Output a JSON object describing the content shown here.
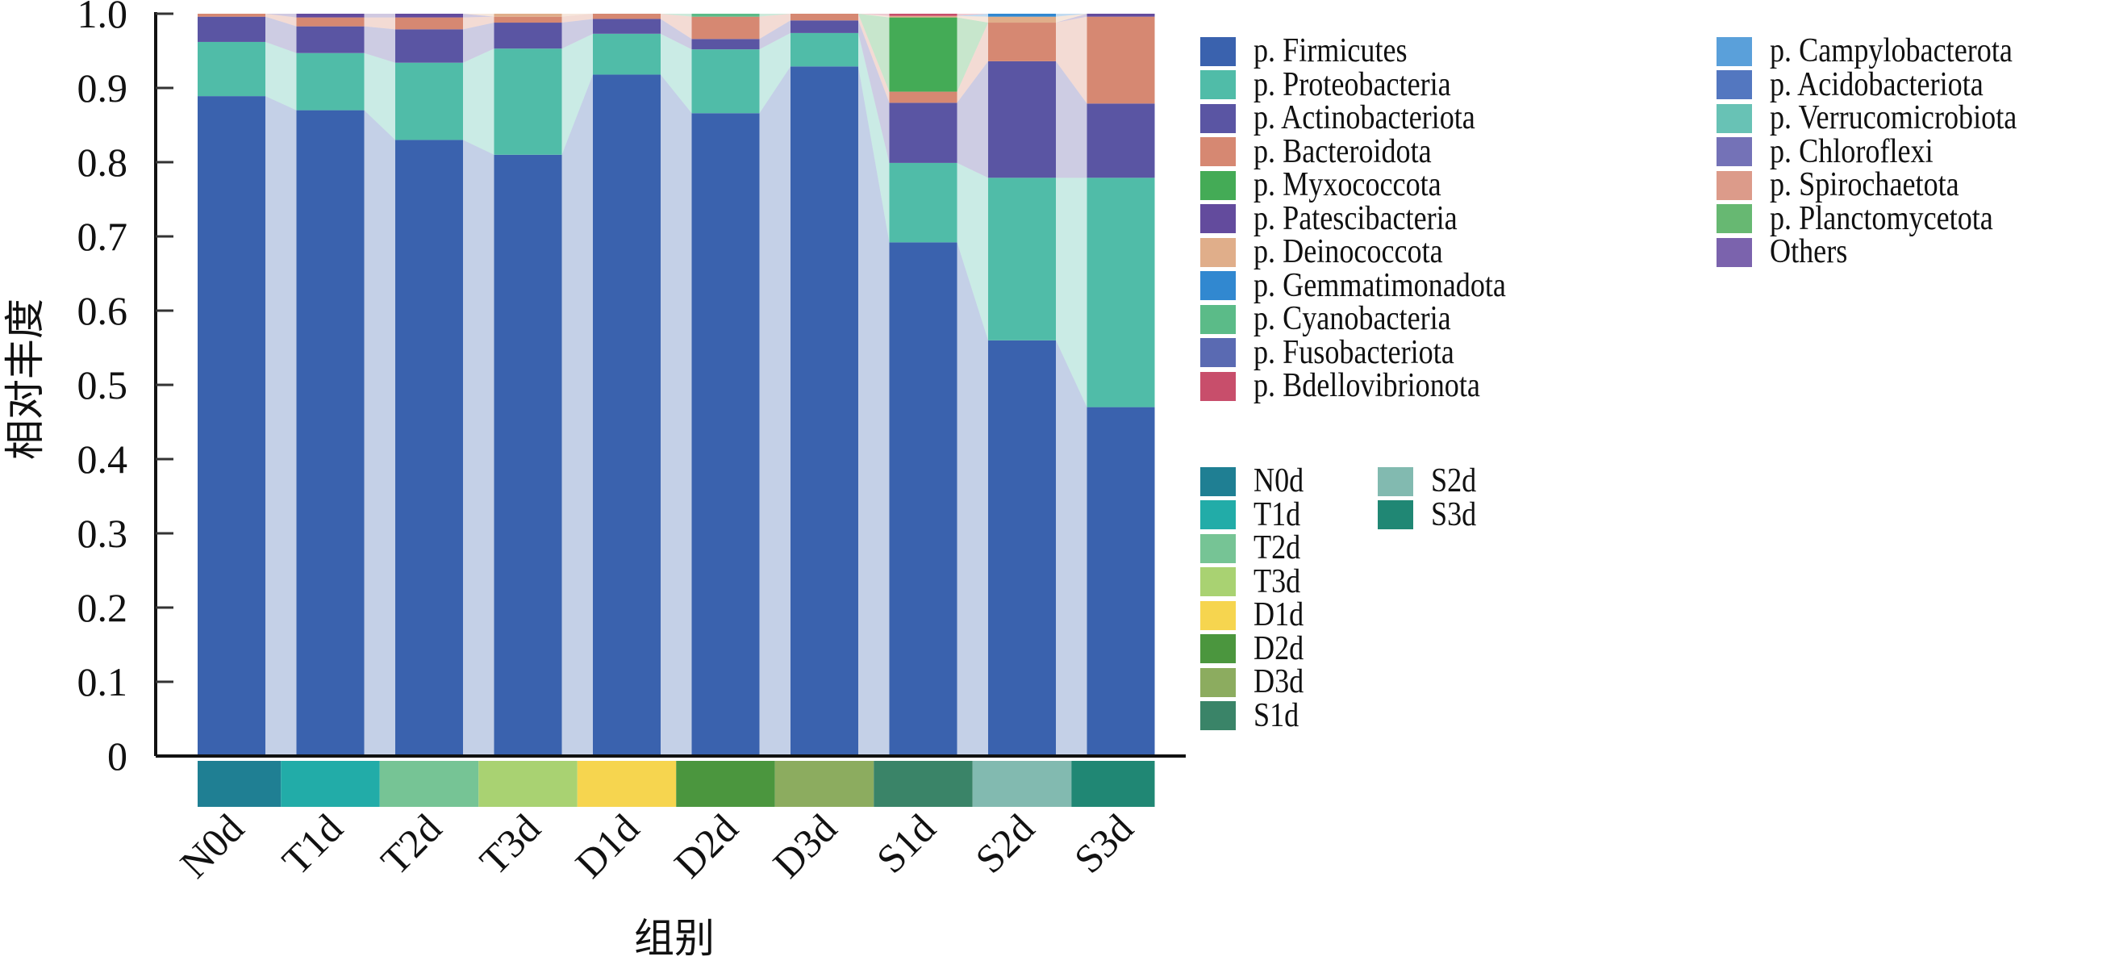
{
  "chart_data": {
    "type": "bar",
    "stacked": true,
    "normalized": true,
    "title": "",
    "xlabel": "组别",
    "ylabel": "相对丰度",
    "ylim": [
      0,
      1.0
    ],
    "yticks": [
      "0",
      "0.1",
      "0.2",
      "0.3",
      "0.4",
      "0.5",
      "0.6",
      "0.7",
      "0.8",
      "0.9",
      "1.0"
    ],
    "ytick_values": [
      0,
      0.1,
      0.2,
      0.3,
      0.4,
      0.5,
      0.6,
      0.7,
      0.8,
      0.9,
      1.0
    ],
    "grid": false,
    "legend_position": "right",
    "categories": [
      "N0d",
      "T1d",
      "T2d",
      "T3d",
      "D1d",
      "D2d",
      "D3d",
      "S1d",
      "S2d",
      "S3d"
    ],
    "group_colors": [
      "#1f7f93",
      "#22aca8",
      "#76c495",
      "#a9d272",
      "#f6d54f",
      "#4b963e",
      "#8cac5f",
      "#3a8468",
      "#82bab0",
      "#208774"
    ],
    "series": [
      {
        "name": "p. Firmicutes",
        "color": "#3a62ae",
        "values": [
          0.889,
          0.87,
          0.83,
          0.81,
          0.918,
          0.866,
          0.929,
          0.692,
          0.56,
          0.47
        ]
      },
      {
        "name": "p. Proteobacteria",
        "color": "#50bca8",
        "values": [
          0.073,
          0.077,
          0.104,
          0.143,
          0.055,
          0.086,
          0.045,
          0.107,
          0.219,
          0.309
        ]
      },
      {
        "name": "p. Actinobacteriota",
        "color": "#5a55a3",
        "values": [
          0.034,
          0.036,
          0.045,
          0.035,
          0.02,
          0.014,
          0.017,
          0.081,
          0.157,
          0.1
        ]
      },
      {
        "name": "p. Bacteroidota",
        "color": "#d68872",
        "values": [
          0.004,
          0.012,
          0.016,
          0.008,
          0.007,
          0.03,
          0.009,
          0.015,
          0.052,
          0.117
        ]
      },
      {
        "name": "p. Myxococcota",
        "color": "#44ab56",
        "values": [
          0,
          0,
          0,
          0,
          0,
          0,
          0,
          0.1,
          0,
          0
        ]
      },
      {
        "name": "p. Patescibacteria",
        "color": "#634b9d",
        "values": [
          0,
          0.005,
          0.005,
          0,
          0,
          0,
          0,
          0,
          0,
          0.004
        ]
      },
      {
        "name": "p. Deinococcota",
        "color": "#e0ae8a",
        "values": [
          0,
          0,
          0,
          0.004,
          0,
          0,
          0,
          0.002,
          0.008,
          0
        ]
      },
      {
        "name": "p. Gemmatimonadota",
        "color": "#3188d0",
        "values": [
          0,
          0,
          0,
          0,
          0,
          0,
          0,
          0,
          0.004,
          0
        ]
      },
      {
        "name": "p. Cyanobacteria",
        "color": "#5bbb88",
        "values": [
          0,
          0,
          0,
          0,
          0,
          0.004,
          0,
          0,
          0,
          0
        ]
      },
      {
        "name": "p. Fusobacteriota",
        "color": "#5a6ab2",
        "values": [
          0,
          0,
          0,
          0,
          0,
          0,
          0,
          0,
          0,
          0
        ]
      },
      {
        "name": "p. Bdellovibrionota",
        "color": "#c84e6b",
        "values": [
          0,
          0,
          0,
          0,
          0,
          0,
          0,
          0.003,
          0,
          0
        ]
      },
      {
        "name": "p. Campylobacterota",
        "color": "#5aa0da",
        "values": [
          0,
          0,
          0,
          0,
          0,
          0,
          0,
          0,
          0,
          0
        ]
      },
      {
        "name": "p. Acidobacteriota",
        "color": "#5377c0",
        "values": [
          0,
          0,
          0,
          0,
          0,
          0,
          0,
          0,
          0,
          0
        ]
      },
      {
        "name": "p. Verrucomicrobiota",
        "color": "#68c2b5",
        "values": [
          0,
          0,
          0,
          0,
          0,
          0,
          0,
          0,
          0,
          0
        ]
      },
      {
        "name": "p. Chloroflexi",
        "color": "#7472b7",
        "values": [
          0,
          0,
          0,
          0,
          0,
          0,
          0,
          0,
          0,
          0
        ]
      },
      {
        "name": "p. Spirochaetota",
        "color": "#dc9b8a",
        "values": [
          0,
          0,
          0,
          0,
          0,
          0,
          0,
          0,
          0,
          0
        ]
      },
      {
        "name": "p. Planctomycetota",
        "color": "#67b872",
        "values": [
          0,
          0,
          0,
          0,
          0,
          0,
          0,
          0,
          0,
          0
        ]
      },
      {
        "name": "Others",
        "color": "#7b63ad",
        "values": [
          0,
          0,
          0,
          0,
          0,
          0,
          0,
          0,
          0,
          0
        ]
      }
    ]
  },
  "legend": {
    "taxa_col1": [
      0,
      1,
      2,
      3,
      4,
      5,
      6,
      7,
      8,
      9,
      10
    ],
    "taxa_col2": [
      11,
      12,
      13,
      14,
      15,
      16,
      17
    ],
    "groups_col1": [
      0,
      1,
      2,
      3,
      4,
      5,
      6,
      7
    ],
    "groups_col2": [
      8,
      9
    ]
  }
}
